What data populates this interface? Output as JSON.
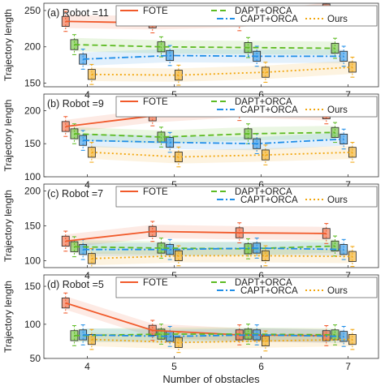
{
  "chart_data": [
    {
      "type": "line",
      "panel_label": "(a) Robot =11",
      "ylabel": "Trajectory length",
      "ylim": [
        145,
        260
      ],
      "yticks": [
        150,
        200,
        250
      ],
      "xlim": [
        3.5,
        7.35
      ],
      "xticks": [
        4,
        5,
        6,
        7
      ],
      "legend_placement": "top",
      "series": [
        {
          "name": "FOTE",
          "color": "#f15a2b",
          "style": "solid",
          "x": [
            3.75,
            4.75,
            5.75,
            6.75
          ],
          "values": [
            235,
            233,
            236,
            252
          ]
        },
        {
          "name": "DAPT+ORCA",
          "color": "#5dbb22",
          "style": "dashed",
          "x": [
            3.85,
            4.85,
            5.85,
            6.85
          ],
          "values": [
            203,
            200,
            199,
            198
          ]
        },
        {
          "name": "CAPT+ORCA",
          "color": "#1f8ee8",
          "style": "dashdot",
          "x": [
            3.95,
            4.95,
            5.95,
            6.95
          ],
          "values": [
            183,
            188,
            187,
            187
          ]
        },
        {
          "name": "Ours",
          "color": "#f2a60d",
          "style": "dotted",
          "x": [
            4.05,
            5.05,
            6.05,
            7.05
          ],
          "values": [
            162,
            161,
            165,
            172
          ]
        }
      ]
    },
    {
      "type": "line",
      "panel_label": "(b) Robot =9",
      "ylabel": "Trajectory length",
      "ylim": [
        100,
        225
      ],
      "yticks": [
        100,
        150,
        200
      ],
      "xlim": [
        3.5,
        7.35
      ],
      "xticks": [
        4,
        5,
        6,
        7
      ],
      "legend_placement": "top",
      "series": [
        {
          "name": "FOTE",
          "color": "#f15a2b",
          "style": "solid",
          "x": [
            3.75,
            4.75,
            5.75,
            6.75
          ],
          "values": [
            176,
            192,
            200,
            195
          ]
        },
        {
          "name": "DAPT+ORCA",
          "color": "#5dbb22",
          "style": "dashed",
          "x": [
            3.85,
            4.85,
            5.85,
            6.85
          ],
          "values": [
            165,
            160,
            165,
            167
          ]
        },
        {
          "name": "CAPT+ORCA",
          "color": "#1f8ee8",
          "style": "dashdot",
          "x": [
            3.95,
            4.95,
            5.95,
            6.95
          ],
          "values": [
            155,
            152,
            150,
            157
          ]
        },
        {
          "name": "Ours",
          "color": "#f2a60d",
          "style": "dotted",
          "x": [
            4.05,
            5.05,
            6.05,
            7.05
          ],
          "values": [
            137,
            130,
            133,
            137
          ]
        }
      ]
    },
    {
      "type": "line",
      "panel_label": "(c) Robot =7",
      "ylabel": "Trajectory length",
      "ylim": [
        90,
        210
      ],
      "yticks": [
        100,
        150,
        200
      ],
      "xlim": [
        3.5,
        7.35
      ],
      "xticks": [
        4,
        5,
        6,
        7
      ],
      "legend_placement": "top",
      "series": [
        {
          "name": "FOTE",
          "color": "#f15a2b",
          "style": "solid",
          "x": [
            3.75,
            4.75,
            5.75,
            6.75
          ],
          "values": [
            128,
            142,
            140,
            139
          ]
        },
        {
          "name": "DAPT+ORCA",
          "color": "#5dbb22",
          "style": "dashed",
          "x": [
            3.85,
            4.85,
            5.85,
            6.85
          ],
          "values": [
            120,
            118,
            117,
            121
          ]
        },
        {
          "name": "CAPT+ORCA",
          "color": "#1f8ee8",
          "style": "dashdot",
          "x": [
            3.95,
            4.95,
            5.95,
            6.95
          ],
          "values": [
            116,
            116,
            118,
            116
          ]
        },
        {
          "name": "Ours",
          "color": "#f2a60d",
          "style": "dotted",
          "x": [
            4.05,
            5.05,
            6.05,
            7.05
          ],
          "values": [
            103,
            107,
            107,
            106
          ]
        }
      ]
    },
    {
      "type": "line",
      "panel_label": "(d) Robot =5",
      "ylabel": "Trajectory length",
      "ylim": [
        55,
        165
      ],
      "yticks": [
        50,
        100,
        150
      ],
      "xlim": [
        3.5,
        7.35
      ],
      "xticks": [
        4,
        5,
        6,
        7
      ],
      "xlabel": "Number of obstacles",
      "legend_placement": "top",
      "series": [
        {
          "name": "FOTE",
          "color": "#f15a2b",
          "style": "solid",
          "x": [
            3.75,
            4.75,
            5.75,
            6.75
          ],
          "values": [
            128,
            92,
            86,
            85
          ]
        },
        {
          "name": "DAPT+ORCA",
          "color": "#5dbb22",
          "style": "dashed",
          "x": [
            3.85,
            4.85,
            5.85,
            6.85
          ],
          "values": [
            85,
            87,
            87,
            86
          ]
        },
        {
          "name": "CAPT+ORCA",
          "color": "#1f8ee8",
          "style": "dashdot",
          "x": [
            3.95,
            4.95,
            5.95,
            6.95
          ],
          "values": [
            86,
            84,
            86,
            84
          ]
        },
        {
          "name": "Ours",
          "color": "#f2a60d",
          "style": "dotted",
          "x": [
            4.05,
            5.05,
            6.05,
            7.05
          ],
          "values": [
            80,
            76,
            78,
            80
          ]
        }
      ]
    }
  ]
}
